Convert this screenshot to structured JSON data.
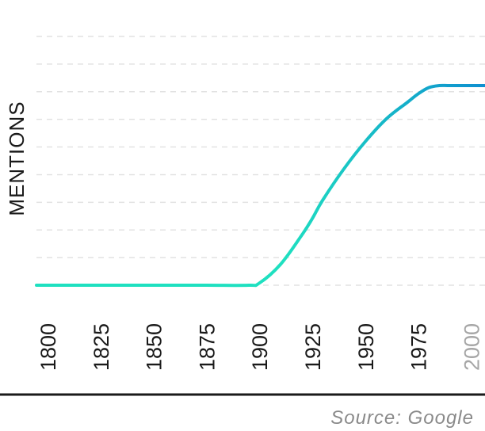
{
  "chart_data": {
    "type": "line",
    "ylabel": "MENTIONS",
    "x_ticks": [
      "1800",
      "1825",
      "1850",
      "1875",
      "1900",
      "1925",
      "1950",
      "1975",
      "2000"
    ],
    "xlim": [
      1800,
      2010
    ],
    "ylim": [
      0,
      1
    ],
    "grid": true,
    "series": [
      {
        "x": [
          1800,
          1825,
          1850,
          1875,
          1895,
          1900,
          1910,
          1920,
          1925,
          1930,
          1940,
          1950,
          1960,
          1970,
          1975,
          1980,
          1985,
          1990,
          2000,
          2010
        ],
        "y": [
          0,
          0,
          0,
          0,
          0,
          0.01,
          0.1,
          0.24,
          0.32,
          0.41,
          0.56,
          0.69,
          0.8,
          0.88,
          0.92,
          0.95,
          0.96,
          0.96,
          0.96,
          0.96
        ],
        "color_start": "#1fe0c0",
        "color_end": "#0e8fd0"
      }
    ],
    "source": "Source: Google"
  },
  "colors": {
    "grid": "#e2e2e2",
    "axis": "#1a1a1a"
  }
}
